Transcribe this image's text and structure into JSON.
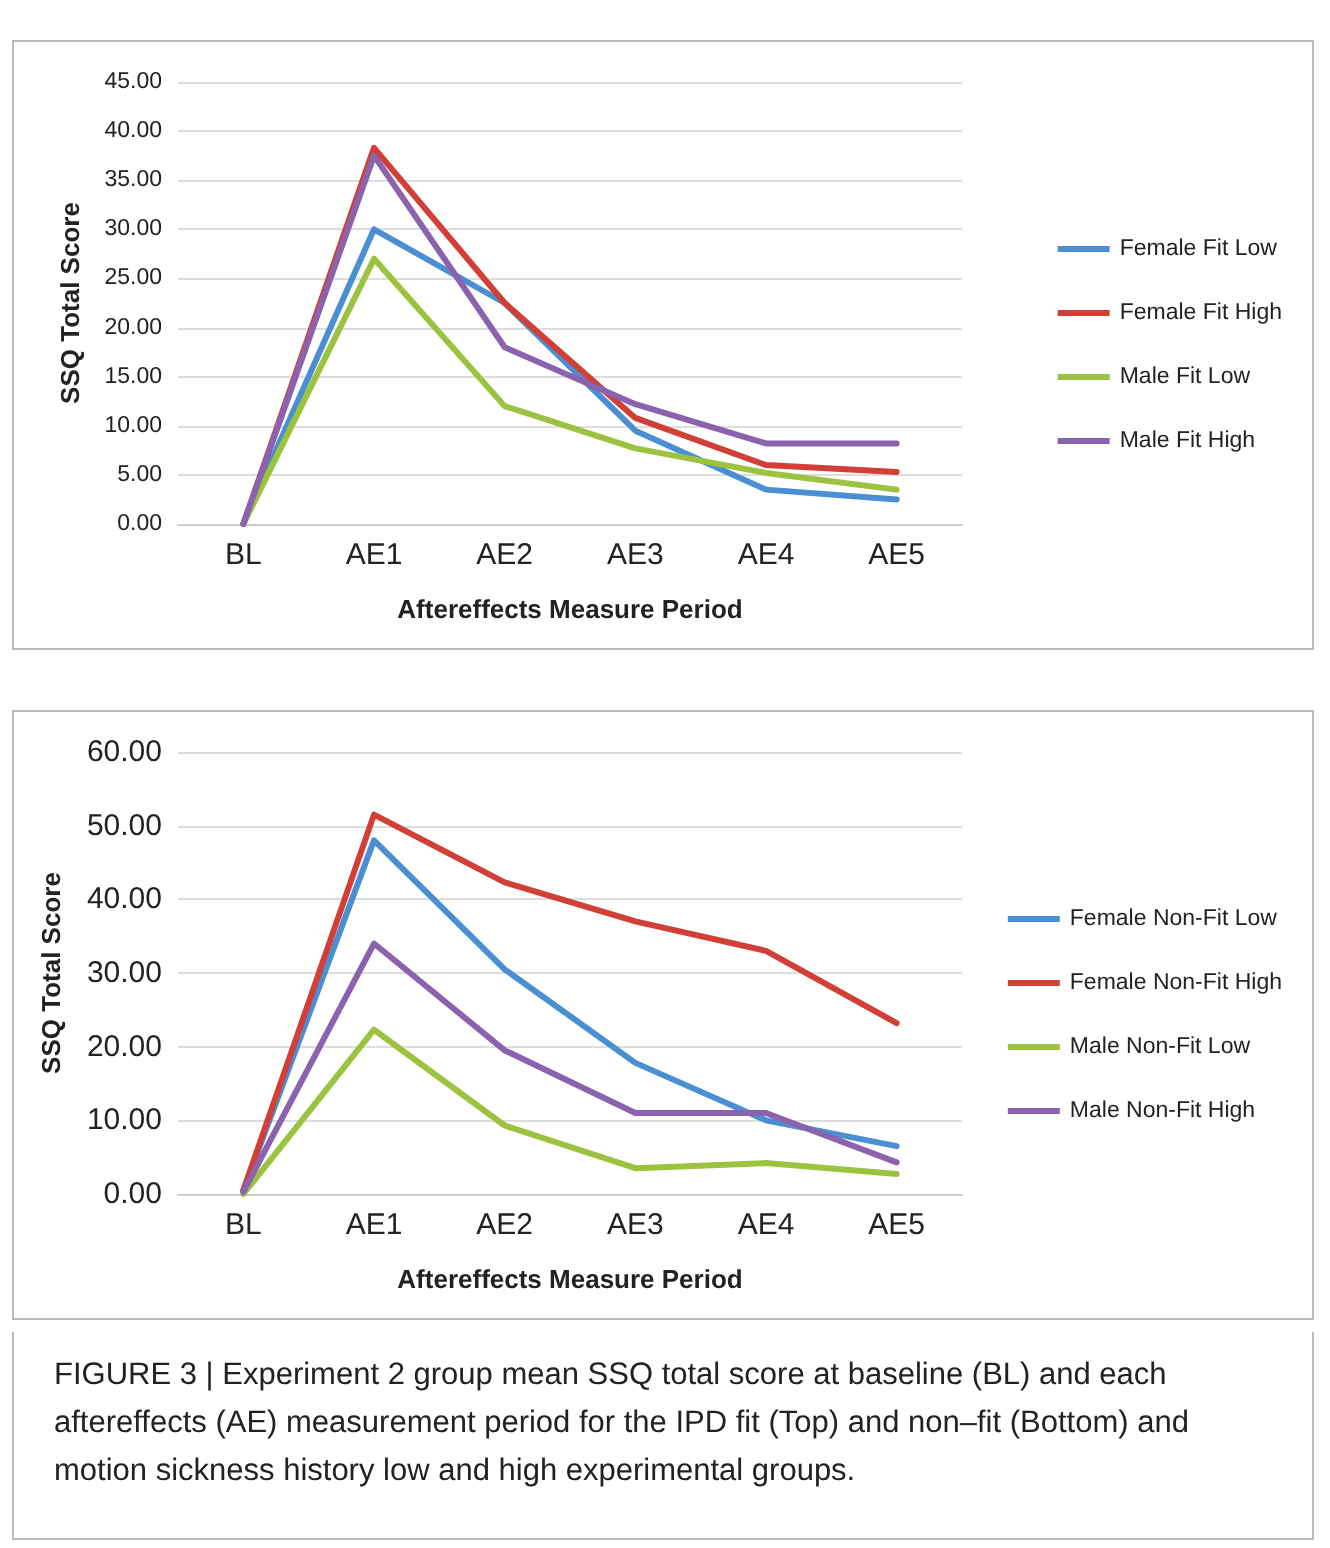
{
  "chart_data": [
    {
      "type": "line",
      "xlabel": "Aftereffects Measure Period",
      "ylabel": "SSQ Total Score",
      "categories": [
        "BL",
        "AE1",
        "AE2",
        "AE3",
        "AE4",
        "AE5"
      ],
      "series": [
        {
          "name": "Female Fit Low",
          "color": "#4a8fd1",
          "values": [
            0,
            30,
            22.5,
            9.5,
            3.5,
            2.5
          ]
        },
        {
          "name": "Female Fit High",
          "color": "#d13f36",
          "values": [
            0,
            38.3,
            22.5,
            10.8,
            6,
            5.3
          ]
        },
        {
          "name": "Male Fit Low",
          "color": "#9bc33f",
          "values": [
            0,
            27,
            12,
            7.7,
            5.2,
            3.5
          ]
        },
        {
          "name": "Male Fit High",
          "color": "#8b62ad",
          "values": [
            0,
            37.5,
            18,
            12.2,
            8.2,
            8.2
          ]
        }
      ],
      "ylim": [
        0,
        45
      ],
      "yticks": [
        {
          "value": 0,
          "label": "0.00"
        },
        {
          "value": 5,
          "label": "5.00"
        },
        {
          "value": 10,
          "label": "10.00"
        },
        {
          "value": 15,
          "label": "15.00"
        },
        {
          "value": 20,
          "label": "20.00"
        },
        {
          "value": 25,
          "label": "25.00"
        },
        {
          "value": 30,
          "label": "30.00"
        },
        {
          "value": 35,
          "label": "35.00"
        },
        {
          "value": 40,
          "label": "40.00"
        },
        {
          "value": 45,
          "label": "45.00"
        }
      ],
      "grid": "y",
      "legend": "right",
      "marker": "none",
      "line_style": "solid"
    },
    {
      "type": "line",
      "xlabel": "Aftereffects Measure Period",
      "ylabel": "SSQ Total Score",
      "categories": [
        "BL",
        "AE1",
        "AE2",
        "AE3",
        "AE4",
        "AE5"
      ],
      "series": [
        {
          "name": "Female Non-Fit Low",
          "color": "#4a8fd1",
          "values": [
            0.5,
            48,
            30.5,
            17.8,
            10,
            6.5
          ]
        },
        {
          "name": "Female Non-Fit High",
          "color": "#d13f36",
          "values": [
            0.5,
            51.5,
            42.3,
            37,
            33,
            23.2
          ]
        },
        {
          "name": "Male Non-Fit Low",
          "color": "#9bc33f",
          "values": [
            0,
            22.3,
            9.3,
            3.5,
            4.2,
            2.7
          ]
        },
        {
          "name": "Male Non-Fit High",
          "color": "#8b62ad",
          "values": [
            0.3,
            34,
            19.5,
            11,
            11,
            4.3
          ]
        }
      ],
      "ylim": [
        0,
        60
      ],
      "yticks": [
        {
          "value": 0,
          "label": "0.00"
        },
        {
          "value": 10,
          "label": "10.00"
        },
        {
          "value": 20,
          "label": "20.00"
        },
        {
          "value": 30,
          "label": "30.00"
        },
        {
          "value": 40,
          "label": "40.00"
        },
        {
          "value": 50,
          "label": "50.00"
        },
        {
          "value": 60,
          "label": "60.00"
        }
      ],
      "grid": "y",
      "legend": "right",
      "marker": "none",
      "line_style": "solid",
      "annotations": [
        "FIGURE 3 | Experiment 2 group mean SSQ total score at baseline (BL) and each aftereffects (AE) measurement period for the IPD fit (Top) and non–fit (Bottom) and motion sickness history low and high experimental groups."
      ]
    }
  ]
}
